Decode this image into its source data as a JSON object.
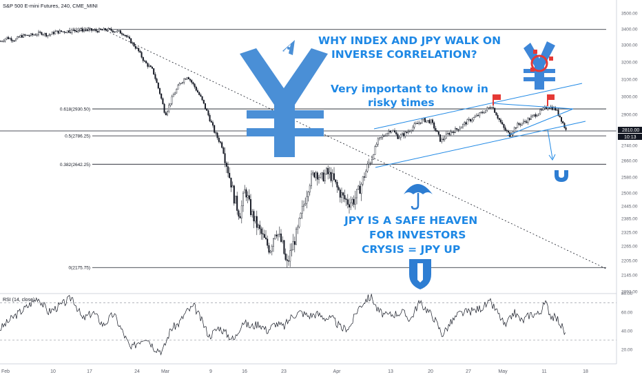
{
  "header": {
    "title": "S&P 500 E-mini Futures, 240, CME_MINI"
  },
  "colors": {
    "accent": "#1e88e5",
    "candle": "#131722",
    "grid": "#2a2e39",
    "price_tag": "#131722"
  },
  "price_panel": {
    "price_label": "2810.00",
    "countdown": "10:13"
  },
  "annotations": {
    "headline_1": "WHY INDEX AND JPY WALK ON",
    "headline_2": "INVERSE CORRELATION?",
    "important_1": "Very important to know in",
    "important_2": "risky times",
    "safe_1": "JPY IS A SAFE HEAVEN",
    "safe_2": "FOR INVESTORS",
    "safe_3": "CRYSIS = JPY UP"
  },
  "icons": [
    "yen-rocket-icon",
    "yen-target-icon",
    "umbrella-icon",
    "magnet-icon",
    "shield-icon",
    "flag-icon"
  ],
  "rsi": {
    "label": "RSI (14, close)"
  },
  "chart_data": [
    {
      "type": "candlestick",
      "title": "S&P 500 E-mini Futures, 240, CME_MINI",
      "x_ticks": [
        "Feb",
        "10",
        "17",
        "24",
        "Mar",
        "9",
        "16",
        "23",
        "Apr",
        "13",
        "20",
        "27",
        "May",
        "11",
        "18"
      ],
      "y_ticks": [
        3500,
        3400,
        3300,
        3200,
        3100,
        3000,
        2900,
        2740,
        2660,
        2580,
        2500,
        2445,
        2385,
        2325,
        2265,
        2205,
        2145,
        2093
      ],
      "y_tick_labels": [
        "3500.00",
        "3400.00",
        "3300.00",
        "3200.00",
        "3100.00",
        "3000.00",
        "2900.00",
        "2740.00",
        "2660.00",
        "2580.00",
        "2500.00",
        "2445.00",
        "2385.00",
        "2325.00",
        "2265.00",
        "2205.00",
        "2145.00",
        "2093.00"
      ],
      "ylim": [
        2093,
        3500
      ],
      "last_price": 2810,
      "fib_levels": [
        {
          "label": "1(3396.75)",
          "value": 3396.75
        },
        {
          "label": "0.618(2930.50)",
          "value": 2930.5
        },
        {
          "label": "0.5(2786.25)",
          "value": 2786.25
        },
        {
          "label": "0.382(2642.25)",
          "value": 2642.25
        },
        {
          "label": "0(2175.75)",
          "value": 2175.75
        }
      ],
      "path_keypoints": [
        [
          0,
          3320
        ],
        [
          10,
          3345
        ],
        [
          22,
          3330
        ],
        [
          30,
          3355
        ],
        [
          45,
          3360
        ],
        [
          60,
          3375
        ],
        [
          70,
          3360
        ],
        [
          80,
          3380
        ],
        [
          95,
          3385
        ],
        [
          110,
          3390
        ],
        [
          125,
          3395
        ],
        [
          140,
          3388
        ],
        [
          155,
          3396
        ],
        [
          170,
          3385
        ],
        [
          180,
          3370
        ],
        [
          190,
          3320
        ],
        [
          200,
          3270
        ],
        [
          210,
          3200
        ],
        [
          222,
          3150
        ],
        [
          232,
          3020
        ],
        [
          240,
          2900
        ],
        [
          252,
          3010
        ],
        [
          262,
          3080
        ],
        [
          272,
          3120
        ],
        [
          282,
          3060
        ],
        [
          292,
          2990
        ],
        [
          302,
          2900
        ],
        [
          312,
          2800
        ],
        [
          322,
          2740
        ],
        [
          332,
          2600
        ],
        [
          340,
          2480
        ],
        [
          348,
          2400
        ],
        [
          356,
          2520
        ],
        [
          364,
          2420
        ],
        [
          372,
          2360
        ],
        [
          382,
          2300
        ],
        [
          392,
          2250
        ],
        [
          400,
          2340
        ],
        [
          410,
          2270
        ],
        [
          416,
          2180
        ],
        [
          424,
          2260
        ],
        [
          432,
          2330
        ],
        [
          440,
          2440
        ],
        [
          450,
          2560
        ],
        [
          458,
          2610
        ],
        [
          466,
          2570
        ],
        [
          474,
          2600
        ],
        [
          482,
          2580
        ],
        [
          490,
          2520
        ],
        [
          498,
          2480
        ],
        [
          506,
          2460
        ],
        [
          514,
          2470
        ],
        [
          522,
          2520
        ],
        [
          530,
          2600
        ],
        [
          540,
          2680
        ],
        [
          548,
          2760
        ],
        [
          558,
          2790
        ],
        [
          568,
          2820
        ],
        [
          578,
          2780
        ],
        [
          590,
          2800
        ],
        [
          602,
          2840
        ],
        [
          614,
          2870
        ],
        [
          626,
          2860
        ],
        [
          640,
          2760
        ],
        [
          652,
          2800
        ],
        [
          664,
          2820
        ],
        [
          678,
          2860
        ],
        [
          692,
          2890
        ],
        [
          704,
          2920
        ],
        [
          714,
          2950
        ],
        [
          722,
          2890
        ],
        [
          732,
          2820
        ],
        [
          740,
          2790
        ],
        [
          750,
          2840
        ],
        [
          762,
          2860
        ],
        [
          774,
          2890
        ],
        [
          786,
          2920
        ],
        [
          796,
          2945
        ],
        [
          806,
          2930
        ],
        [
          814,
          2880
        ],
        [
          822,
          2810
        ]
      ]
    },
    {
      "type": "line",
      "title": "RSI (14, close)",
      "y_ticks": [
        20,
        40,
        60,
        80
      ],
      "y_tick_labels": [
        "20.00",
        "40.00",
        "60.00",
        "80.00"
      ],
      "ylim": [
        12,
        82
      ],
      "bands": [
        70,
        30
      ],
      "path_keypoints": [
        [
          0,
          42
        ],
        [
          20,
          55
        ],
        [
          40,
          66
        ],
        [
          55,
          76
        ],
        [
          70,
          60
        ],
        [
          90,
          68
        ],
        [
          105,
          76
        ],
        [
          120,
          52
        ],
        [
          135,
          60
        ],
        [
          150,
          46
        ],
        [
          165,
          58
        ],
        [
          180,
          36
        ],
        [
          190,
          20
        ],
        [
          200,
          28
        ],
        [
          212,
          34
        ],
        [
          224,
          22
        ],
        [
          236,
          18
        ],
        [
          248,
          42
        ],
        [
          260,
          48
        ],
        [
          270,
          60
        ],
        [
          282,
          66
        ],
        [
          292,
          52
        ],
        [
          304,
          34
        ],
        [
          318,
          44
        ],
        [
          330,
          36
        ],
        [
          340,
          30
        ],
        [
          352,
          50
        ],
        [
          364,
          44
        ],
        [
          376,
          48
        ],
        [
          388,
          40
        ],
        [
          400,
          48
        ],
        [
          412,
          44
        ],
        [
          424,
          56
        ],
        [
          436,
          60
        ],
        [
          448,
          56
        ],
        [
          460,
          58
        ],
        [
          472,
          54
        ],
        [
          484,
          52
        ],
        [
          496,
          42
        ],
        [
          508,
          44
        ],
        [
          520,
          64
        ],
        [
          532,
          74
        ],
        [
          540,
          76
        ],
        [
          548,
          62
        ],
        [
          560,
          56
        ],
        [
          572,
          58
        ],
        [
          584,
          60
        ],
        [
          596,
          52
        ],
        [
          608,
          70
        ],
        [
          618,
          64
        ],
        [
          630,
          54
        ],
        [
          642,
          36
        ],
        [
          654,
          48
        ],
        [
          666,
          58
        ],
        [
          678,
          60
        ],
        [
          690,
          62
        ],
        [
          702,
          66
        ],
        [
          712,
          70
        ],
        [
          722,
          60
        ],
        [
          734,
          44
        ],
        [
          746,
          60
        ],
        [
          758,
          50
        ],
        [
          770,
          58
        ],
        [
          782,
          58
        ],
        [
          792,
          70
        ],
        [
          800,
          56
        ],
        [
          810,
          52
        ],
        [
          816,
          44
        ],
        [
          822,
          34
        ]
      ]
    }
  ]
}
